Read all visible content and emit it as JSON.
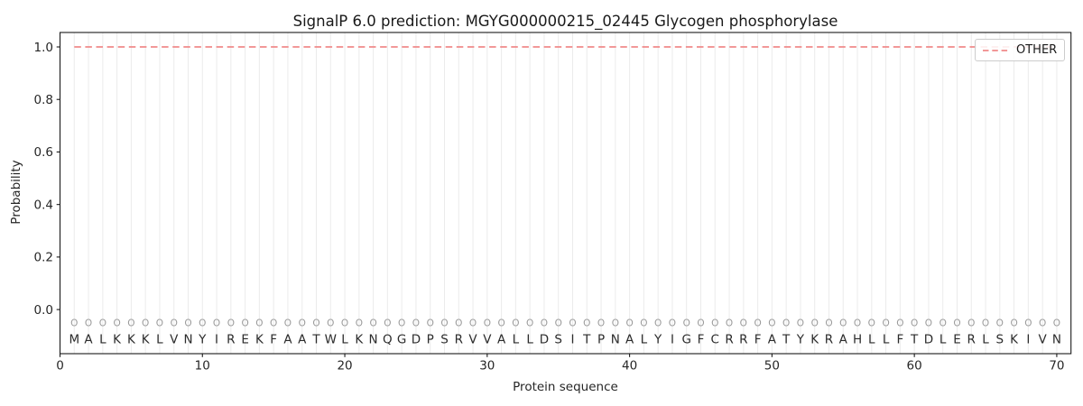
{
  "figure": {
    "title": "SignalP 6.0 prediction: MGYG000000215_02445 Glycogen phosphorylase",
    "xlabel": "Protein sequence",
    "ylabel": "Probability"
  },
  "legend": {
    "position": "upper right",
    "entries": [
      {
        "label": "OTHER",
        "color": "#f08a8a",
        "line_style": "dashed"
      }
    ]
  },
  "chart_data": {
    "type": "line",
    "title": "SignalP 6.0 prediction: MGYG000000215_02445 Glycogen phosphorylase",
    "xlabel": "Protein sequence",
    "ylabel": "Probability",
    "xlim": [
      0,
      71
    ],
    "ylim": [
      -0.168,
      1.055
    ],
    "xticks": [
      0,
      10,
      20,
      30,
      40,
      50,
      60,
      70
    ],
    "yticks": [
      0.0,
      0.2,
      0.4,
      0.6,
      0.8,
      1.0
    ],
    "grid": {
      "vertical_per_residue": true,
      "horizontal": false,
      "color": "#ebebeb"
    },
    "legend_position": "upper right",
    "sequence": "MALKKKLVNYIREKFAATWLKNQGDPSRVVALLDSITPNALYIGFCRRFATYKRAHLLFTDLERLSKIVN",
    "sequence_length": 70,
    "residue_marker": {
      "glyph": "O",
      "y": -0.05,
      "color": "#9a9a9a"
    },
    "style": {
      "spine": "#1a1a1a",
      "tick_label": "#262626",
      "letter": "#2b2b2b",
      "background": "#ffffff"
    },
    "series": [
      {
        "name": "OTHER",
        "color": "#f08a8a",
        "line_style": "dashed",
        "line_width": 1.8,
        "x": [
          1,
          2,
          3,
          4,
          5,
          6,
          7,
          8,
          9,
          10,
          11,
          12,
          13,
          14,
          15,
          16,
          17,
          18,
          19,
          20,
          21,
          22,
          23,
          24,
          25,
          26,
          27,
          28,
          29,
          30,
          31,
          32,
          33,
          34,
          35,
          36,
          37,
          38,
          39,
          40,
          41,
          42,
          43,
          44,
          45,
          46,
          47,
          48,
          49,
          50,
          51,
          52,
          53,
          54,
          55,
          56,
          57,
          58,
          59,
          60,
          61,
          62,
          63,
          64,
          65,
          66,
          67,
          68,
          69,
          70
        ],
        "y": [
          1.0,
          1.0,
          1.0,
          1.0,
          1.0,
          1.0,
          1.0,
          1.0,
          1.0,
          1.0,
          1.0,
          1.0,
          1.0,
          1.0,
          1.0,
          1.0,
          1.0,
          1.0,
          1.0,
          1.0,
          1.0,
          1.0,
          1.0,
          1.0,
          1.0,
          1.0,
          1.0,
          1.0,
          1.0,
          1.0,
          1.0,
          1.0,
          1.0,
          1.0,
          1.0,
          1.0,
          1.0,
          1.0,
          1.0,
          1.0,
          1.0,
          1.0,
          1.0,
          1.0,
          1.0,
          1.0,
          1.0,
          1.0,
          1.0,
          1.0,
          1.0,
          1.0,
          1.0,
          1.0,
          1.0,
          1.0,
          1.0,
          1.0,
          1.0,
          1.0,
          1.0,
          1.0,
          1.0,
          1.0,
          1.0,
          1.0,
          1.0,
          1.0,
          1.0,
          1.0
        ]
      }
    ]
  }
}
